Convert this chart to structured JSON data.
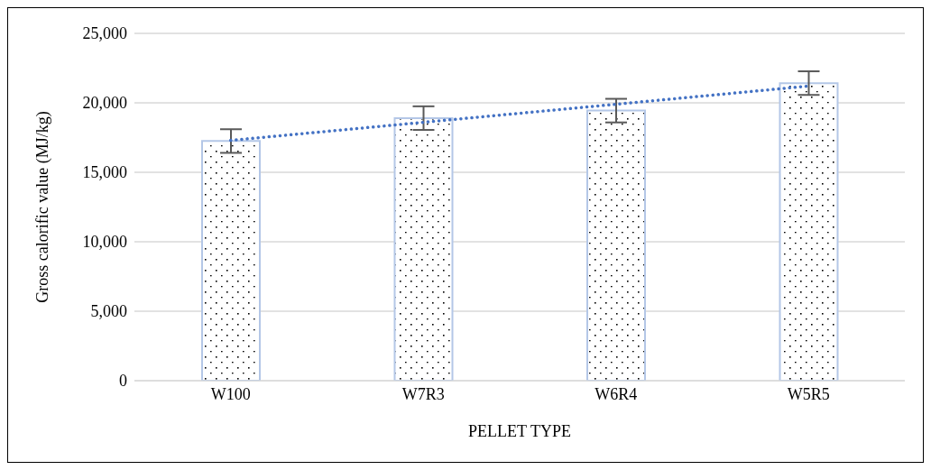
{
  "chart_data": {
    "type": "bar",
    "xlabel": "PELLET TYPE",
    "ylabel": "Gross calorific value (MJ/kg)",
    "categories": [
      "W100",
      "W7R3",
      "W6R4",
      "W5R5"
    ],
    "series": [
      {
        "color": "#b4c7e7",
        "values": [
          17250,
          18900,
          19440,
          21420
        ],
        "errors": [
          850,
          850,
          850,
          850
        ]
      },
      {
        "type": "line",
        "color": "#4472c4",
        "line_style": "dotted",
        "marker": "none",
        "x": [
          "W100",
          "W7R3",
          "W6R4",
          "W5R5"
        ],
        "values": [
          17300,
          18600,
          19900,
          21210
        ]
      }
    ],
    "ylim": [
      0,
      25000
    ],
    "yticks": [
      {
        "value": 0,
        "label": "0"
      },
      {
        "value": 5000,
        "label": "5,000"
      },
      {
        "value": 10000,
        "label": "10,000"
      },
      {
        "value": 15000,
        "label": "15,000"
      },
      {
        "value": 20000,
        "label": "20,000"
      },
      {
        "value": 25000,
        "label": "25,000"
      }
    ],
    "grid": "y",
    "legend": false
  }
}
